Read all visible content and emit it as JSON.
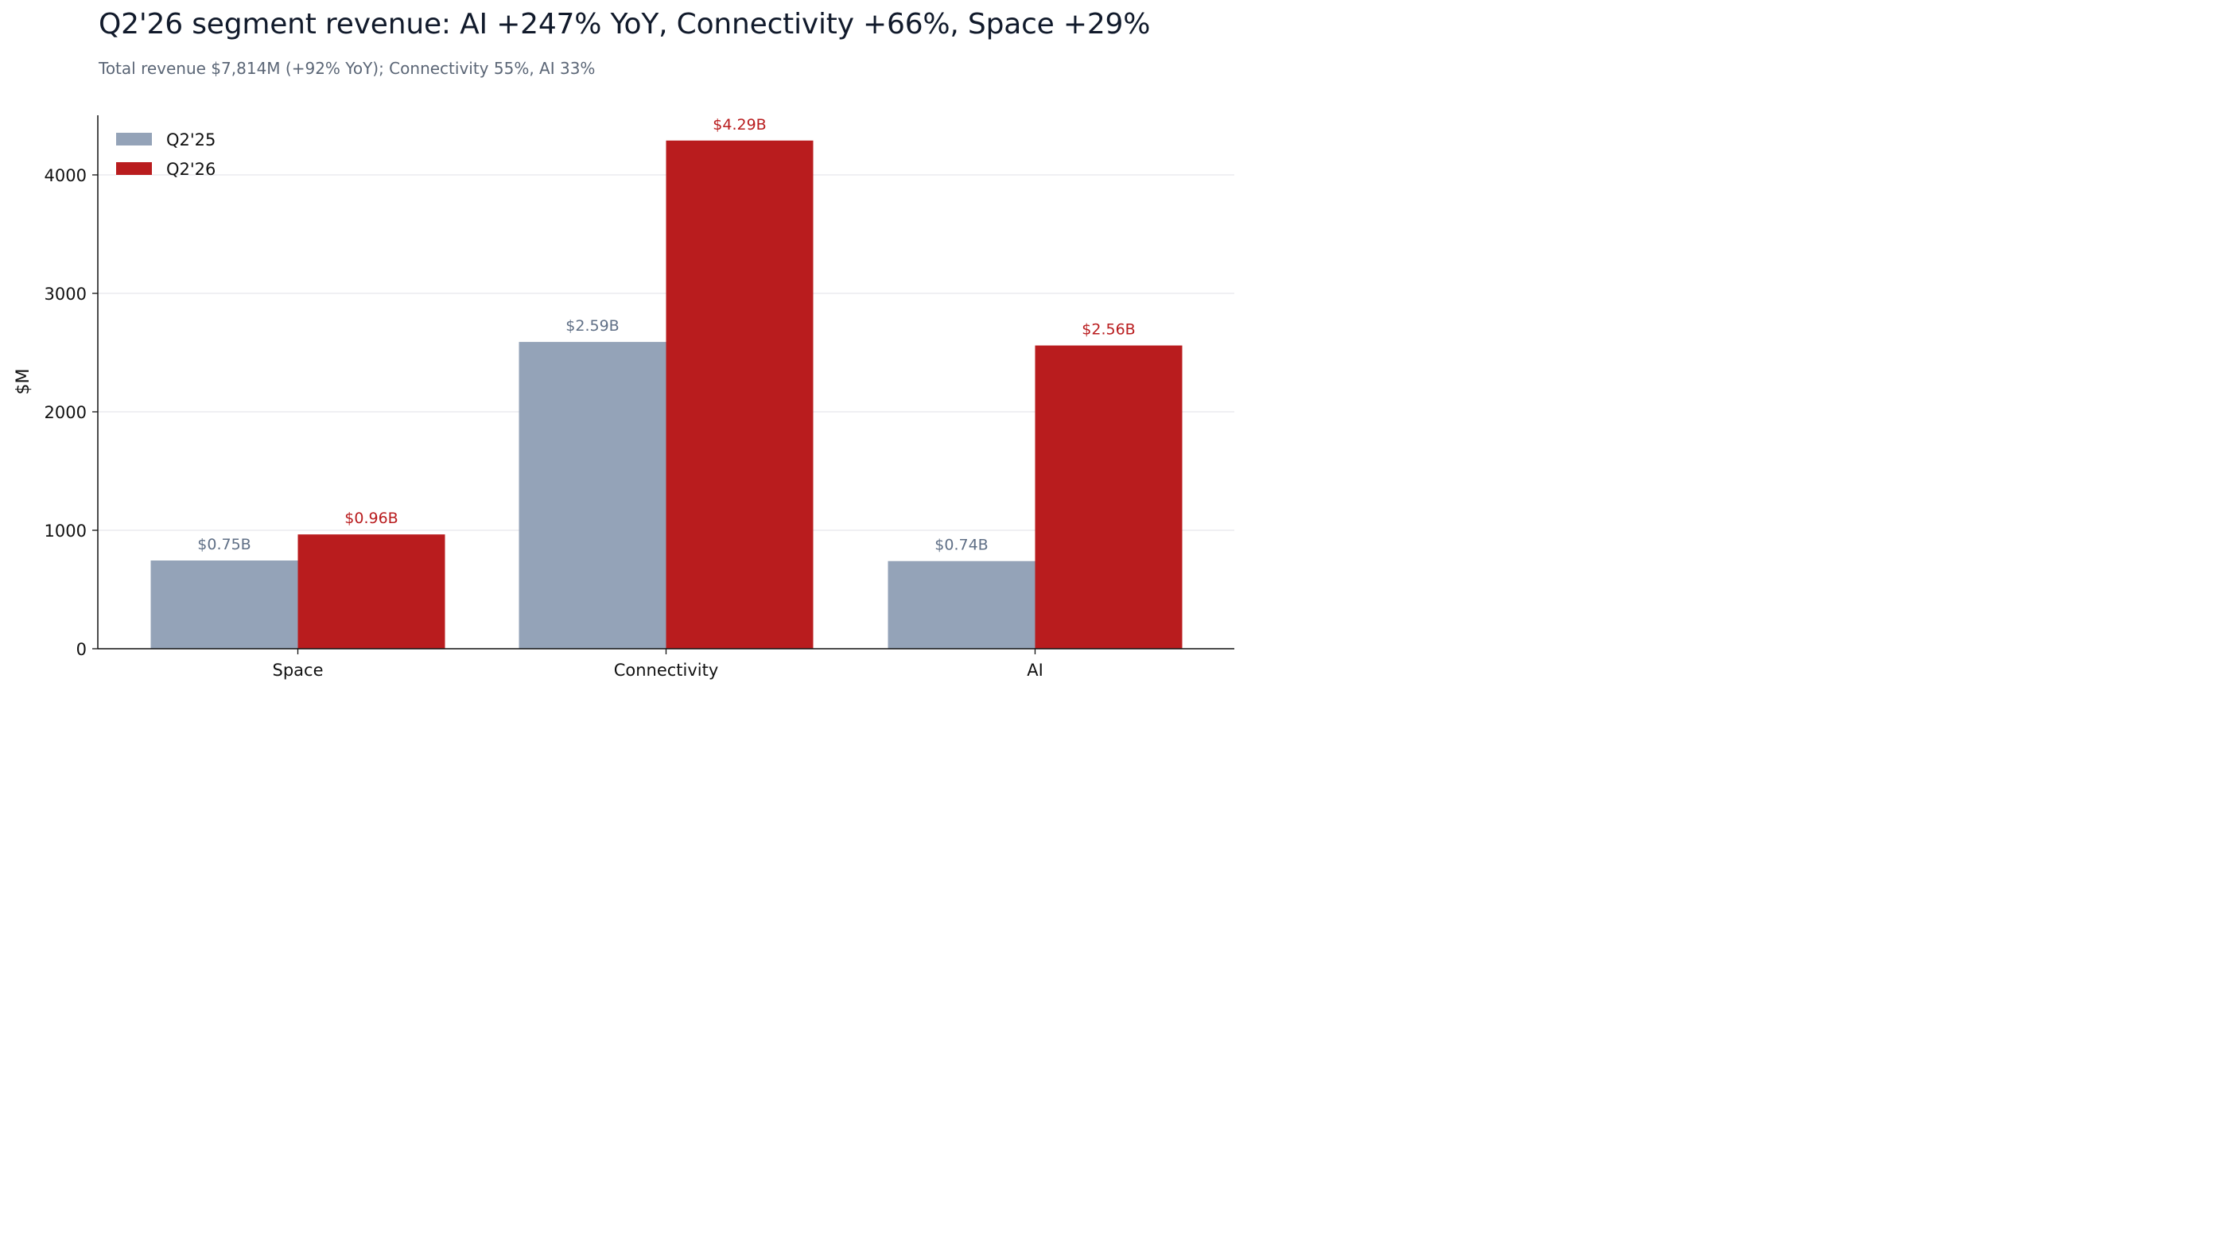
{
  "chart_data": {
    "type": "bar",
    "title": "Q2'26 segment revenue: AI +247% YoY, Connectivity +66%, Space +29%",
    "subtitle": "Total revenue $7,814M (+92% YoY); Connectivity 55%, AI 33%",
    "xlabel": "",
    "ylabel": "$M",
    "categories": [
      "Space",
      "Connectivity",
      "AI"
    ],
    "series": [
      {
        "name": "Q2'25",
        "values": [
          745,
          2590,
          740
        ],
        "labels": [
          "$0.75B",
          "$2.59B",
          "$0.74B"
        ],
        "color": "#94a3b8",
        "label_color": "#5f6f86"
      },
      {
        "name": "Q2'26",
        "values": [
          965,
          4290,
          2560
        ],
        "labels": [
          "$0.96B",
          "$4.29B",
          "$2.56B"
        ],
        "color": "#b91c1e",
        "label_color": "#b91c1e"
      }
    ],
    "ylim": [
      0,
      4500
    ],
    "yticks": [
      0,
      1000,
      2000,
      3000,
      4000
    ],
    "ytick_labels": [
      "0",
      "1000",
      "2000",
      "3000",
      "4000"
    ],
    "grid": true,
    "legend_position": "top-left"
  }
}
